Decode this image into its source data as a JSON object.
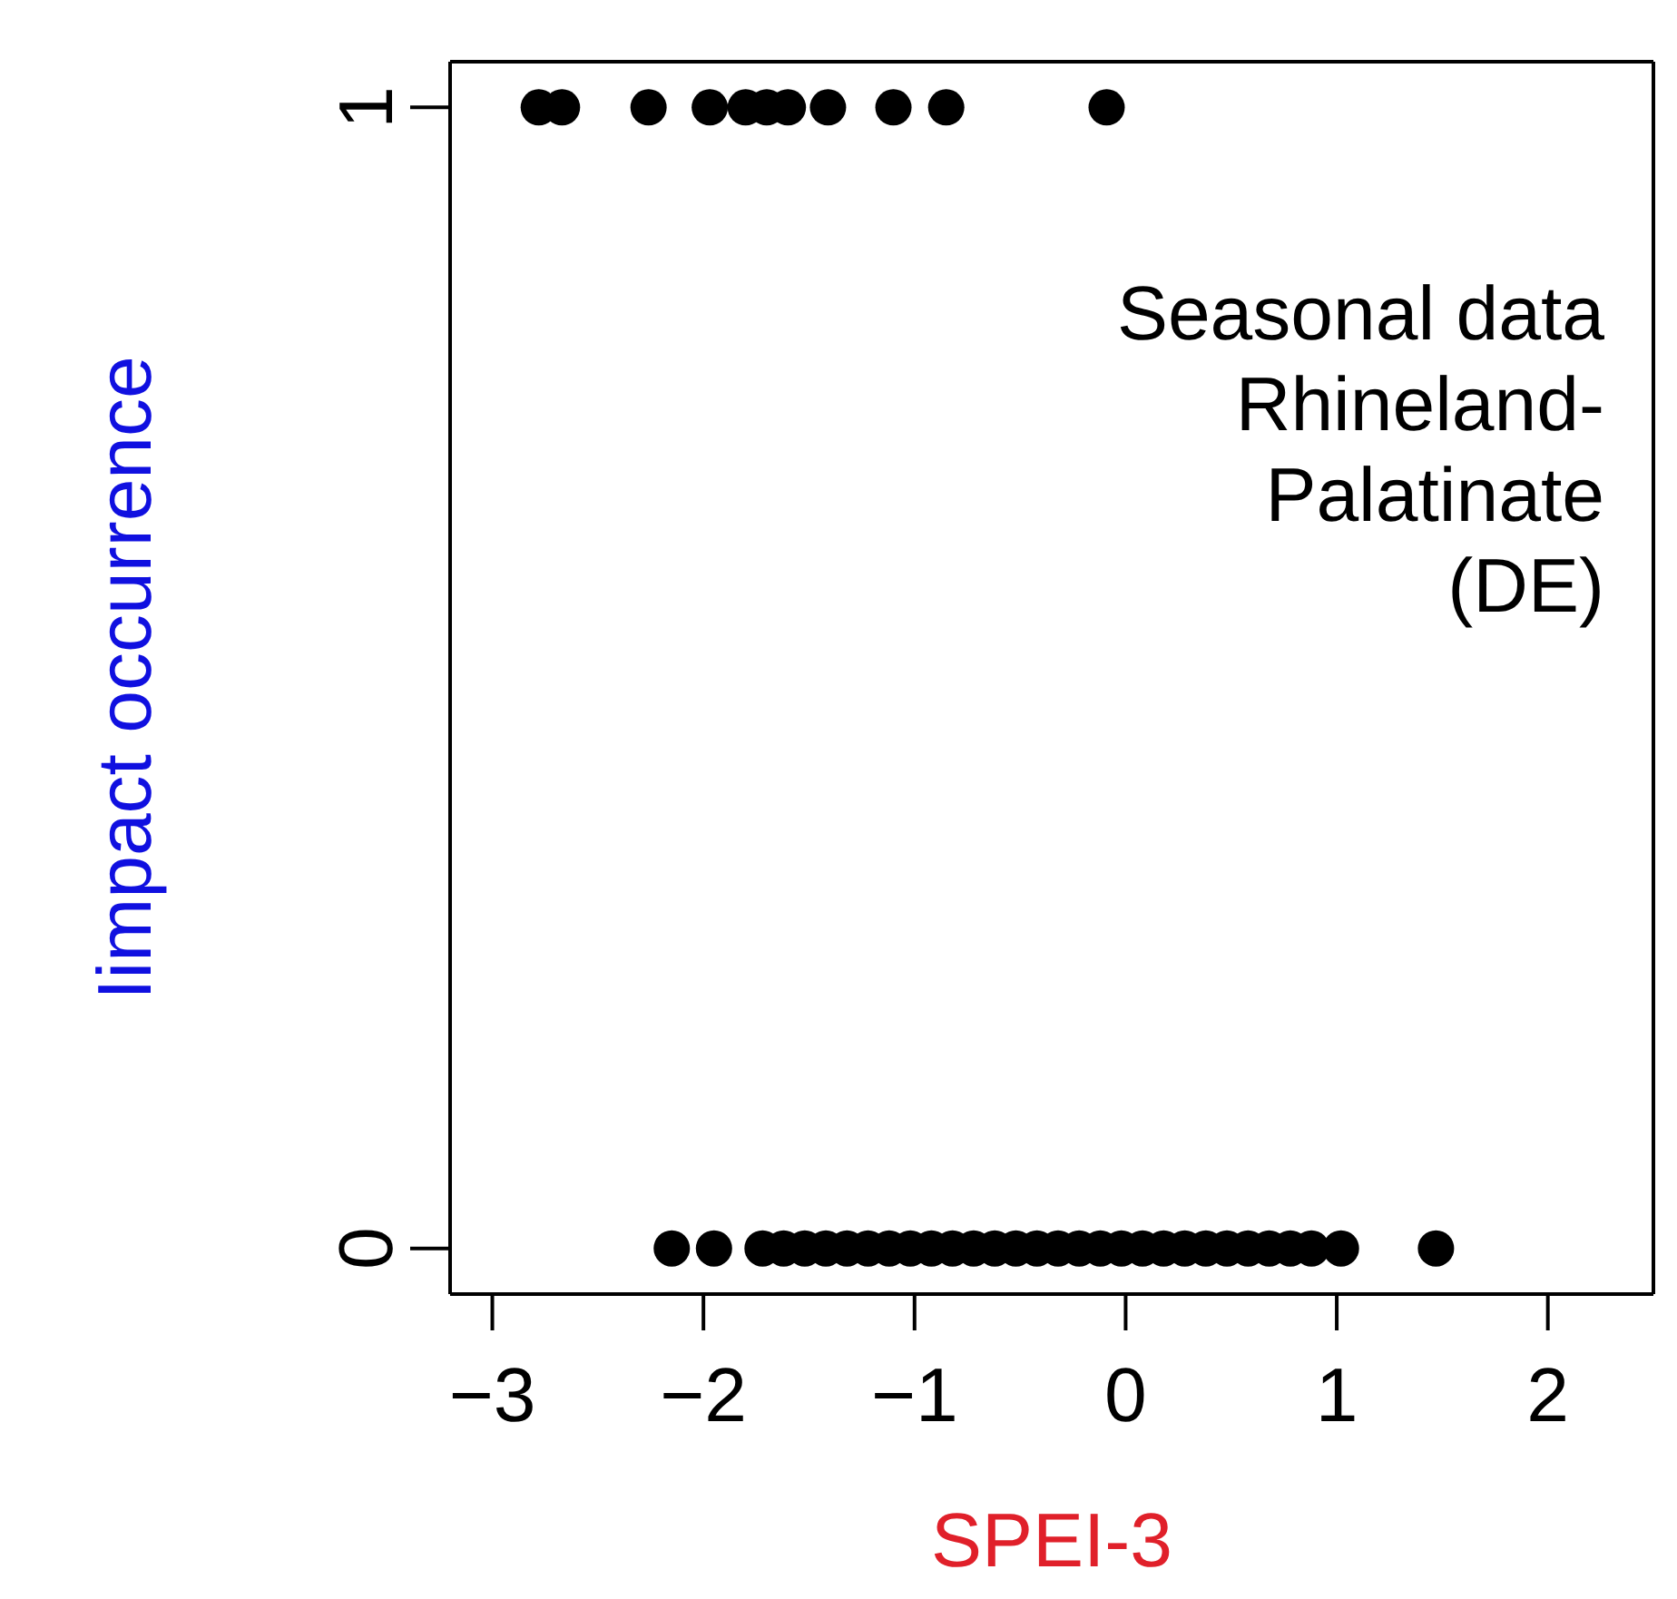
{
  "chart_data": {
    "type": "scatter",
    "xlabel": "SPEI-3",
    "ylabel": "Iimpact occurrence",
    "annotations": [
      "Seasonal data\nRhineland-\nPalatinate\n(DE)"
    ],
    "x": [
      -2.78,
      -2.67,
      -2.26,
      -1.97,
      -1.8,
      -1.7,
      -1.6,
      -1.41,
      -1.1,
      -0.85,
      -0.09,
      -2.15,
      -1.95,
      -1.72,
      -1.62,
      -1.52,
      -1.42,
      -1.32,
      -1.22,
      -1.12,
      -1.02,
      -0.92,
      -0.82,
      -0.72,
      -0.62,
      -0.52,
      -0.42,
      -0.32,
      -0.22,
      -0.12,
      -0.02,
      0.08,
      0.18,
      0.28,
      0.38,
      0.48,
      0.58,
      0.68,
      0.78,
      0.88,
      1.02,
      1.47
    ],
    "values": [
      1,
      1,
      1,
      1,
      1,
      1,
      1,
      1,
      1,
      1,
      1,
      0,
      0,
      0,
      0,
      0,
      0,
      0,
      0,
      0,
      0,
      0,
      0,
      0,
      0,
      0,
      0,
      0,
      0,
      0,
      0,
      0,
      0,
      0,
      0,
      0,
      0,
      0,
      0,
      0,
      0,
      0
    ],
    "color": "#000000",
    "marker": "circle",
    "grid": false,
    "xlim": [
      -3.2,
      2.5
    ],
    "xticks": [
      {
        "value": -3,
        "label": "−3"
      },
      {
        "value": -2,
        "label": "−2"
      },
      {
        "value": -1,
        "label": "−1"
      },
      0,
      1,
      2
    ],
    "ylim": [
      -0.04,
      1.04
    ],
    "yticks": [
      0,
      1
    ]
  }
}
